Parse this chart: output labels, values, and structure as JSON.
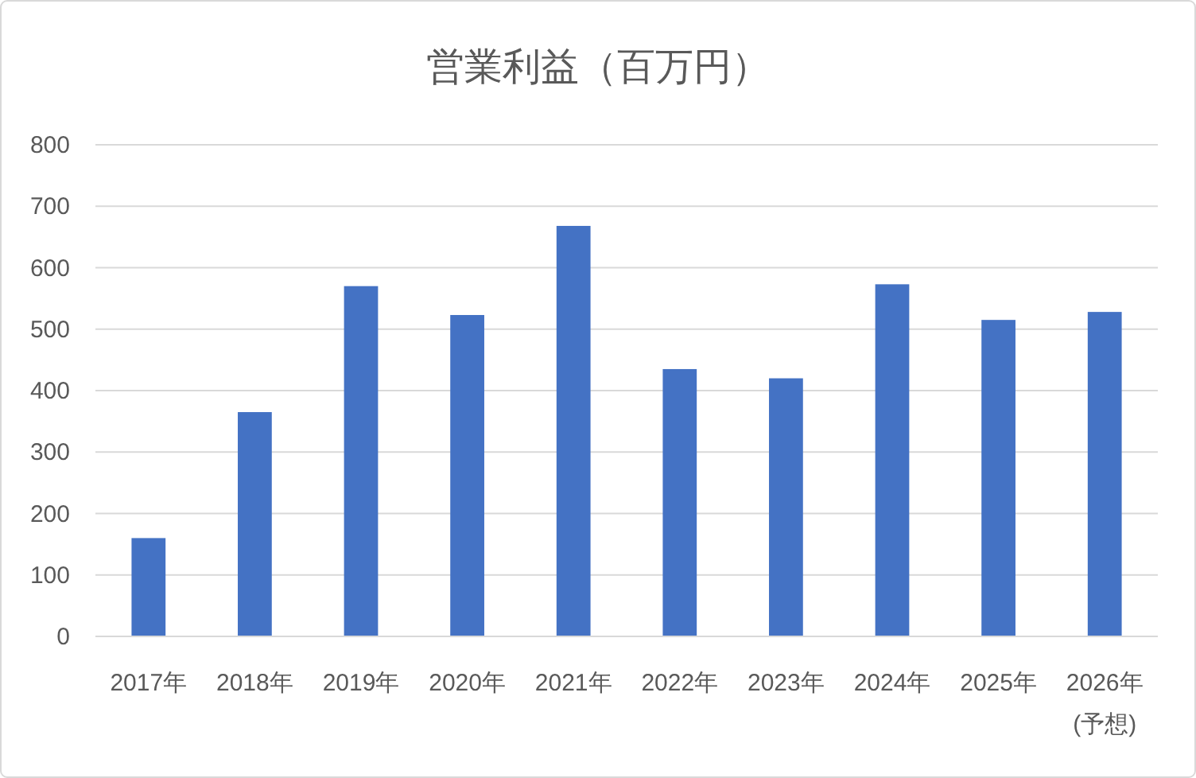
{
  "chart_data": {
    "type": "bar",
    "title": "営業利益（百万円）",
    "categories": [
      "2017年",
      "2018年",
      "2019年",
      "2020年",
      "2021年",
      "2022年",
      "2023年",
      "2024年",
      "2025年",
      "2026年 (予想)"
    ],
    "values": [
      160,
      365,
      570,
      523,
      668,
      435,
      420,
      573,
      515,
      528
    ],
    "color": "#4472c4",
    "ylim": [
      0,
      800
    ],
    "yticks": [
      0,
      100,
      200,
      300,
      400,
      500,
      600,
      700,
      800
    ],
    "grid": "y"
  }
}
